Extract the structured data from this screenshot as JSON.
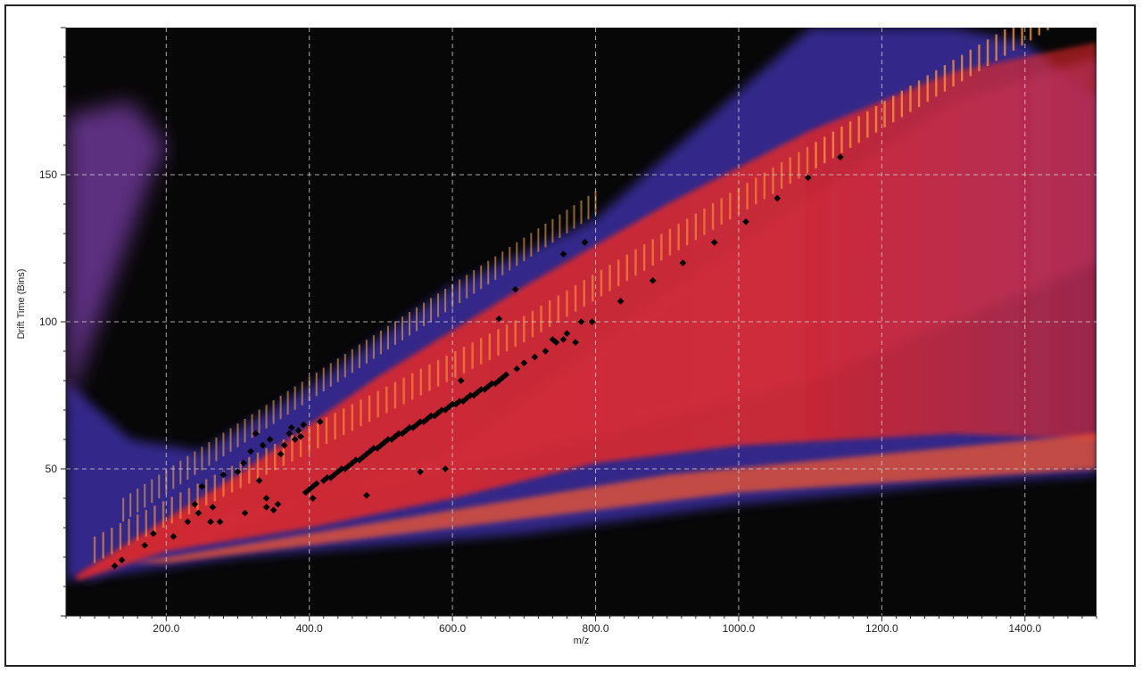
{
  "chart_data": {
    "type": "scatter",
    "title": "",
    "xlabel": "m/z",
    "ylabel": "Drift Time (Bins)",
    "xlim": [
      60,
      1500
    ],
    "ylim": [
      0,
      200
    ],
    "x_ticks": [
      200,
      400,
      600,
      800,
      1000,
      1200,
      1400
    ],
    "x_tick_labels": [
      "200.0",
      "400.0",
      "600.0",
      "800.0",
      "1000.0",
      "1200.0",
      "1400.0"
    ],
    "y_ticks": [
      50,
      100,
      150
    ],
    "y_tick_labels": [
      "50",
      "100",
      "150"
    ],
    "grid": true,
    "background": "ion mobility heatmap (intensity map)",
    "colors": {
      "background": "#070707",
      "low": "#3a2fa0",
      "mid": "#7a3ca8",
      "high": "#e02828",
      "peak": "#ffd24a",
      "marker": "#000000",
      "grid": "#cfcfcf"
    },
    "series": [
      {
        "marker": "diamond",
        "points": [
          [
            128,
            17
          ],
          [
            138,
            19
          ],
          [
            170,
            24
          ],
          [
            182,
            28
          ],
          [
            210,
            27
          ],
          [
            230,
            32
          ],
          [
            240,
            38
          ],
          [
            245,
            35
          ],
          [
            250,
            44
          ],
          [
            262,
            32
          ],
          [
            265,
            37
          ],
          [
            275,
            32
          ],
          [
            280,
            48
          ],
          [
            300,
            49
          ],
          [
            308,
            52
          ],
          [
            318,
            56
          ],
          [
            325,
            62
          ],
          [
            330,
            46
          ],
          [
            335,
            58
          ],
          [
            310,
            35
          ],
          [
            340,
            40
          ],
          [
            340,
            37
          ],
          [
            345,
            60
          ],
          [
            350,
            36
          ],
          [
            356,
            38
          ],
          [
            360,
            55
          ],
          [
            365,
            58
          ],
          [
            372,
            62
          ],
          [
            375,
            64
          ],
          [
            380,
            60
          ],
          [
            385,
            63
          ],
          [
            388,
            61
          ],
          [
            392,
            65
          ],
          [
            395,
            42
          ],
          [
            400,
            43
          ],
          [
            405,
            44
          ],
          [
            410,
            45
          ],
          [
            415,
            66
          ],
          [
            420,
            46
          ],
          [
            425,
            47
          ],
          [
            430,
            47
          ],
          [
            435,
            48
          ],
          [
            440,
            49
          ],
          [
            445,
            50
          ],
          [
            450,
            50
          ],
          [
            455,
            51
          ],
          [
            460,
            52
          ],
          [
            465,
            53
          ],
          [
            470,
            53
          ],
          [
            475,
            54
          ],
          [
            480,
            55
          ],
          [
            485,
            56
          ],
          [
            490,
            57
          ],
          [
            495,
            57
          ],
          [
            500,
            58
          ],
          [
            505,
            59
          ],
          [
            510,
            60
          ],
          [
            515,
            60
          ],
          [
            520,
            61
          ],
          [
            525,
            62
          ],
          [
            530,
            62
          ],
          [
            535,
            63
          ],
          [
            540,
            64
          ],
          [
            545,
            64
          ],
          [
            550,
            65
          ],
          [
            555,
            66
          ],
          [
            560,
            66
          ],
          [
            565,
            67
          ],
          [
            570,
            68
          ],
          [
            575,
            68
          ],
          [
            580,
            69
          ],
          [
            585,
            70
          ],
          [
            590,
            70
          ],
          [
            595,
            71
          ],
          [
            600,
            72
          ],
          [
            605,
            72
          ],
          [
            610,
            73
          ],
          [
            615,
            73
          ],
          [
            620,
            74
          ],
          [
            625,
            75
          ],
          [
            630,
            75
          ],
          [
            635,
            76
          ],
          [
            640,
            77
          ],
          [
            645,
            77
          ],
          [
            650,
            78
          ],
          [
            655,
            79
          ],
          [
            660,
            79
          ],
          [
            665,
            80
          ],
          [
            670,
            81
          ],
          [
            675,
            82
          ],
          [
            690,
            84
          ],
          [
            700,
            86
          ],
          [
            715,
            88
          ],
          [
            730,
            90
          ],
          [
            745,
            93
          ],
          [
            760,
            96
          ],
          [
            780,
            100
          ],
          [
            555,
            49
          ],
          [
            590,
            50
          ],
          [
            405,
            40
          ],
          [
            480,
            41
          ],
          [
            612,
            80
          ],
          [
            665,
            101
          ],
          [
            688,
            111
          ],
          [
            755,
            123
          ],
          [
            785,
            127
          ],
          [
            772,
            93
          ],
          [
            755,
            94
          ],
          [
            740,
            94
          ],
          [
            795,
            100
          ],
          [
            835,
            107
          ],
          [
            880,
            114
          ],
          [
            922,
            120
          ],
          [
            966,
            127
          ],
          [
            1010,
            134
          ],
          [
            1054,
            142
          ],
          [
            1097,
            149
          ],
          [
            1142,
            156
          ]
        ]
      }
    ]
  }
}
